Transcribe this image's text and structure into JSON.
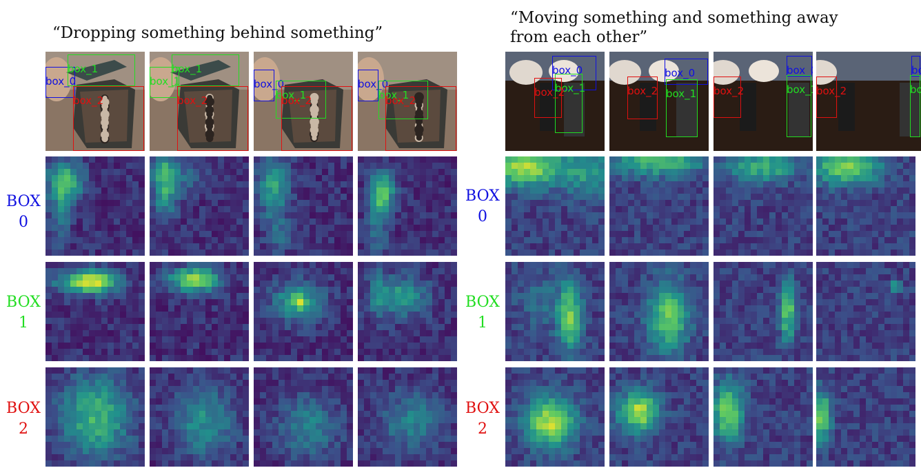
{
  "panels": [
    {
      "caption": "“Dropping something behind something”",
      "row_labels": [
        {
          "line1": "BOX",
          "line2": "0",
          "color": "#1010e0"
        },
        {
          "line1": "BOX",
          "line2": "1",
          "color": "#22dd22"
        },
        {
          "line1": "BOX",
          "line2": "2",
          "color": "#e01010"
        }
      ],
      "box_names": [
        "box_0",
        "box_1",
        "box_2"
      ]
    },
    {
      "caption_line1": "“Moving something and something away",
      "caption_line2": "from each other”",
      "row_labels": [
        {
          "line1": "BOX",
          "line2": "0",
          "color": "#1010e0"
        },
        {
          "line1": "BOX",
          "line2": "1",
          "color": "#22dd22"
        },
        {
          "line1": "BOX",
          "line2": "2",
          "color": "#e01010"
        }
      ],
      "box_names": [
        "box_0",
        "box_1",
        "box_2"
      ]
    }
  ],
  "colors": {
    "box_0": "#1010e0",
    "box_1": "#22dd22",
    "box_2": "#e01010",
    "viridis_low": "#440154",
    "viridis_mid": "#21918c",
    "viridis_high": "#fde725"
  }
}
